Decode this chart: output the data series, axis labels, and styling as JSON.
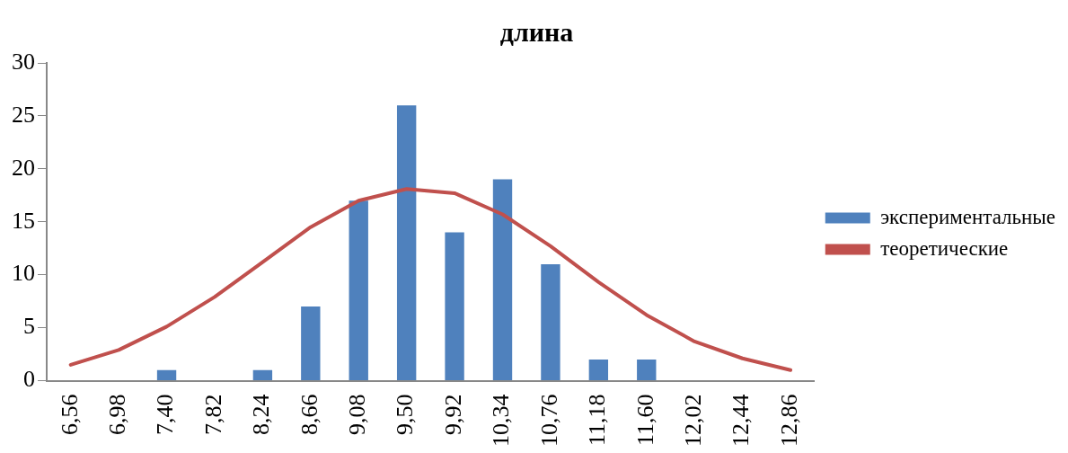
{
  "chart_data": {
    "type": "bar",
    "title": "длина",
    "categories": [
      "6,56",
      "6,98",
      "7,40",
      "7,82",
      "8,24",
      "8,66",
      "9,08",
      "9,50",
      "9,92",
      "10,34",
      "10,76",
      "11,18",
      "11,60",
      "12,02",
      "12,44",
      "12,86"
    ],
    "series": [
      {
        "name": "экспериментальные",
        "color": "#4f81bd",
        "values": [
          0,
          0,
          1,
          0,
          1,
          7,
          17,
          26,
          14,
          19,
          11,
          2,
          2,
          0,
          0,
          0
        ]
      },
      {
        "name": "теоретические",
        "type": "line",
        "color": "#c0504d",
        "values": [
          1.5,
          2.9,
          5.1,
          7.9,
          11.2,
          14.5,
          17.0,
          18.1,
          17.7,
          15.7,
          12.7,
          9.3,
          6.2,
          3.7,
          2.1,
          1.0
        ]
      }
    ],
    "ylim": [
      0,
      30
    ],
    "yticks": [
      0,
      5,
      10,
      15,
      20,
      25,
      30
    ],
    "grid": false,
    "legend": "right",
    "marker": "none",
    "line_style": "solid"
  }
}
